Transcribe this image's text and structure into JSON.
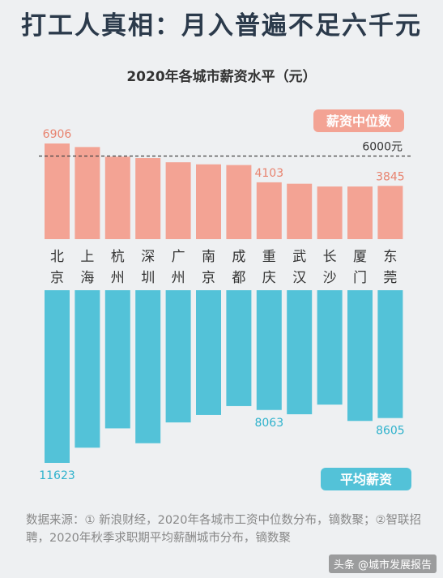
{
  "headline": "打工人真相：月入普遍不足六千元",
  "chart_data": {
    "type": "bar",
    "title": "2020年各城市薪资水平（元）",
    "categories": [
      [
        "北",
        "京"
      ],
      [
        "上",
        "海"
      ],
      [
        "杭",
        "州"
      ],
      [
        "深",
        "圳"
      ],
      [
        "广",
        "州"
      ],
      [
        "南",
        "京"
      ],
      [
        "成",
        "都"
      ],
      [
        "重",
        "庆"
      ],
      [
        "武",
        "汉"
      ],
      [
        "长",
        "沙"
      ],
      [
        "厦",
        "门"
      ],
      [
        "东",
        "莞"
      ]
    ],
    "series": [
      {
        "name": "薪资中位数",
        "color": "#f3a394",
        "label_color": "#e8836f",
        "values": [
          6906,
          6650,
          5950,
          5850,
          5550,
          5400,
          5350,
          4103,
          4000,
          3800,
          3800,
          3845
        ],
        "labeled": [
          0,
          7,
          11
        ]
      },
      {
        "name": "平均薪资",
        "color": "#53c2d8",
        "label_color": "#2fb2cc",
        "values": [
          11623,
          10600,
          9300,
          10300,
          8900,
          8400,
          7800,
          8063,
          8350,
          7700,
          8800,
          8605
        ],
        "labeled": [
          0,
          7,
          11
        ]
      }
    ],
    "reference_line": {
      "value": 6000,
      "label": "6000元"
    }
  },
  "source": {
    "text": "数据来源：① 新浪财经，2020年各城市工资中位数分布，镝数聚；②智联招聘，2020年秋季求职期平均薪酬城市分布，镝数聚"
  },
  "watermark": "头条 @城市发展报告"
}
